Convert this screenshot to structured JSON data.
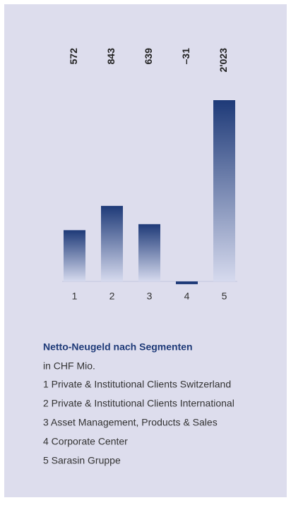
{
  "chart_data": {
    "type": "bar",
    "title": "Netto-Neugeld nach Segmenten",
    "subtitle": "in CHF Mio.",
    "categories": [
      "1",
      "2",
      "3",
      "4",
      "5"
    ],
    "values": [
      572,
      843,
      639,
      -31,
      2023
    ],
    "value_labels": [
      "572",
      "843",
      "639",
      "–31",
      "2'023"
    ],
    "color": "#1e3a78",
    "legend": [
      "1 Private & Institutional Clients Switzerland",
      "2 Private & Institutional Clients International",
      "3 Asset Management, Products & Sales",
      "4 Corporate Center",
      "5 Sarasin Gruppe"
    ]
  }
}
